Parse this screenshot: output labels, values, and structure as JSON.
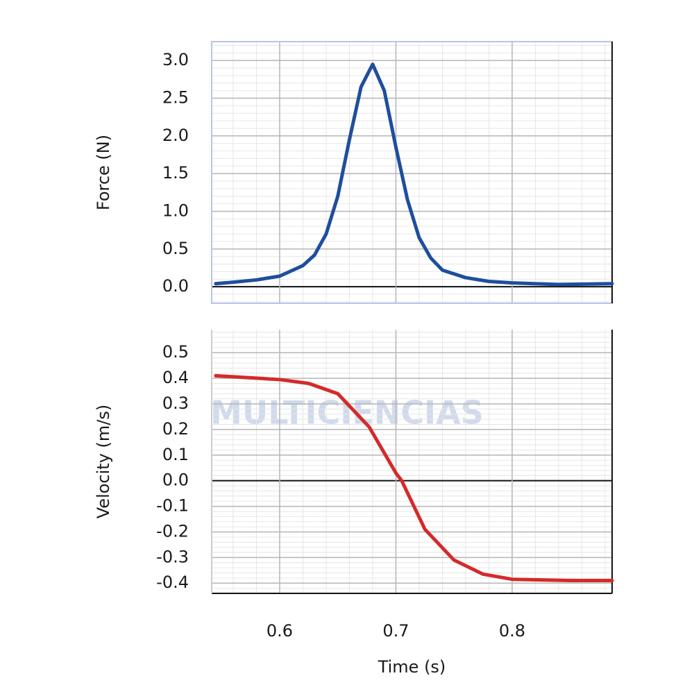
{
  "watermark": "MULTICIENCIAS",
  "chart_data": [
    {
      "type": "line",
      "ylabel": "Force (N)",
      "x": [
        0.545,
        0.56,
        0.58,
        0.6,
        0.62,
        0.63,
        0.64,
        0.65,
        0.66,
        0.67,
        0.68,
        0.69,
        0.7,
        0.71,
        0.72,
        0.73,
        0.74,
        0.76,
        0.78,
        0.8,
        0.84,
        0.886
      ],
      "series": [
        {
          "color": "#1f4e9c",
          "values": [
            0.04,
            0.06,
            0.09,
            0.14,
            0.28,
            0.42,
            0.7,
            1.2,
            1.95,
            2.65,
            2.95,
            2.6,
            1.85,
            1.15,
            0.65,
            0.38,
            0.22,
            0.12,
            0.07,
            0.05,
            0.03,
            0.04
          ]
        }
      ],
      "xlim": [
        0.5415,
        0.886
      ],
      "ylim": [
        -0.22,
        3.25
      ],
      "xticks": [
        0.6,
        0.7,
        0.8
      ],
      "show_xtick_labels": false,
      "yticks": [
        {
          "value": 0,
          "label": "0.0"
        },
        0.5,
        {
          "value": 1,
          "label": "1.0"
        },
        1.5,
        {
          "value": 2,
          "label": "2.0"
        },
        2.5,
        {
          "value": 3,
          "label": "3.0"
        }
      ],
      "grid": true
    },
    {
      "type": "line",
      "ylabel": "Velocity (m/s)",
      "xlabel": "Time (s)",
      "x": [
        0.545,
        0.6,
        0.625,
        0.65,
        0.677,
        0.7,
        0.705,
        0.725,
        0.75,
        0.775,
        0.8,
        0.85,
        0.886
      ],
      "series": [
        {
          "color": "#d42a2a",
          "values": [
            0.41,
            0.395,
            0.38,
            0.34,
            0.21,
            0.03,
            0,
            -0.19,
            -0.31,
            -0.365,
            -0.385,
            -0.39,
            -0.39
          ]
        }
      ],
      "xlim": [
        0.5415,
        0.886
      ],
      "ylim": [
        -0.44,
        0.59
      ],
      "xticks": [
        0.6,
        0.7,
        0.8
      ],
      "show_xtick_labels": true,
      "yticks": [
        -0.4,
        -0.3,
        -0.2,
        -0.1,
        {
          "value": 0,
          "label": "0.0"
        },
        0.1,
        0.2,
        0.3,
        0.4,
        0.5
      ],
      "grid": true
    }
  ]
}
